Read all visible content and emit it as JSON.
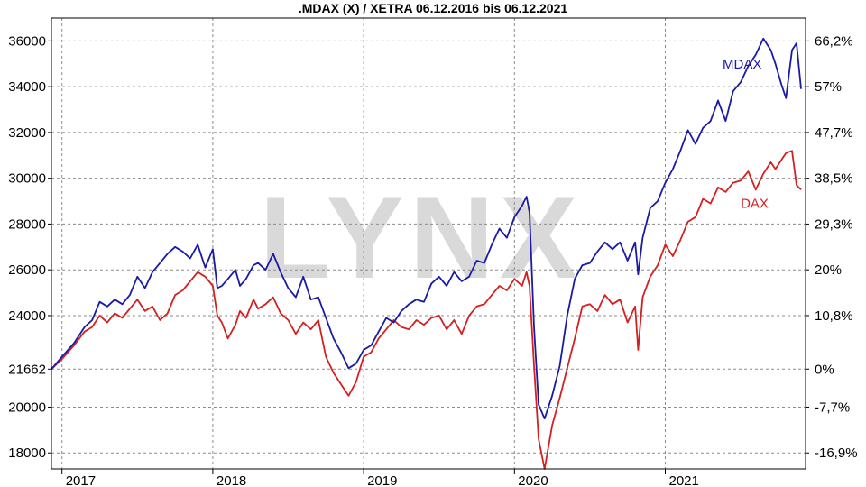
{
  "chart_data": {
    "type": "line",
    "title": ".MDAX (X) / XETRA 06.12.2016 bis 06.12.2021",
    "watermark": "LYNX",
    "ylim": [
      17300,
      37000
    ],
    "y_ticks_left": [
      18000,
      20000,
      21662,
      24000,
      26000,
      28000,
      30000,
      32000,
      34000,
      36000
    ],
    "y_ticks_right": [
      {
        "value": 18000,
        "label": "-16,9%"
      },
      {
        "value": 20000,
        "label": "-7,7%"
      },
      {
        "value": 21662,
        "label": "0%"
      },
      {
        "value": 24000,
        "label": "10,8%"
      },
      {
        "value": 26000,
        "label": "20%"
      },
      {
        "value": 28000,
        "label": "29,3%"
      },
      {
        "value": 30000,
        "label": "38,5%"
      },
      {
        "value": 32000,
        "label": "47,7%"
      },
      {
        "value": 34000,
        "label": "57%"
      },
      {
        "value": 36000,
        "label": "66,2%"
      }
    ],
    "xlim": [
      2016.93,
      2021.93
    ],
    "x_ticks": [
      {
        "value": 2017,
        "label": "2017"
      },
      {
        "value": 2018,
        "label": "2018"
      },
      {
        "value": 2019,
        "label": "2019"
      },
      {
        "value": 2020,
        "label": "2020"
      },
      {
        "value": 2021,
        "label": "2021"
      }
    ],
    "grid": true,
    "series": [
      {
        "name": "MDAX",
        "color": "#1a1aa6",
        "x": [
          2016.93,
          2017.0,
          2017.08,
          2017.15,
          2017.2,
          2017.25,
          2017.3,
          2017.35,
          2017.4,
          2017.45,
          2017.5,
          2017.55,
          2017.6,
          2017.65,
          2017.7,
          2017.75,
          2017.8,
          2017.85,
          2017.9,
          2017.95,
          2018.0,
          2018.03,
          2018.06,
          2018.1,
          2018.15,
          2018.18,
          2018.22,
          2018.27,
          2018.3,
          2018.35,
          2018.4,
          2018.45,
          2018.5,
          2018.55,
          2018.6,
          2018.65,
          2018.7,
          2018.75,
          2018.8,
          2018.85,
          2018.9,
          2018.95,
          2019.0,
          2019.05,
          2019.1,
          2019.15,
          2019.2,
          2019.25,
          2019.3,
          2019.35,
          2019.4,
          2019.45,
          2019.5,
          2019.55,
          2019.6,
          2019.65,
          2019.7,
          2019.75,
          2019.8,
          2019.85,
          2019.9,
          2019.95,
          2020.0,
          2020.05,
          2020.08,
          2020.1,
          2020.13,
          2020.16,
          2020.2,
          2020.25,
          2020.3,
          2020.35,
          2020.4,
          2020.45,
          2020.5,
          2020.55,
          2020.6,
          2020.65,
          2020.7,
          2020.75,
          2020.8,
          2020.82,
          2020.85,
          2020.9,
          2020.95,
          2021.0,
          2021.05,
          2021.1,
          2021.15,
          2021.2,
          2021.25,
          2021.3,
          2021.35,
          2021.4,
          2021.45,
          2021.5,
          2021.55,
          2021.6,
          2021.65,
          2021.7,
          2021.73,
          2021.77,
          2021.8,
          2021.84,
          2021.87,
          2021.9
        ],
        "values": [
          21662,
          22200,
          22800,
          23500,
          23800,
          24600,
          24400,
          24700,
          24500,
          24900,
          25700,
          25200,
          25900,
          26300,
          26700,
          27000,
          26800,
          26500,
          27100,
          26100,
          26900,
          25200,
          25300,
          25600,
          26000,
          25300,
          25600,
          26200,
          26300,
          26000,
          26700,
          25900,
          25200,
          24800,
          25700,
          24700,
          24800,
          23900,
          23000,
          22400,
          21700,
          21900,
          22500,
          22700,
          23300,
          23900,
          23700,
          24200,
          24500,
          24700,
          24600,
          25400,
          25700,
          25300,
          25900,
          25500,
          25700,
          26400,
          26300,
          27100,
          27800,
          27400,
          28300,
          28800,
          29200,
          28500,
          23500,
          20100,
          19500,
          20500,
          21800,
          24000,
          25600,
          26200,
          26300,
          26800,
          27200,
          26900,
          27200,
          26400,
          27200,
          25800,
          27400,
          28700,
          29000,
          29800,
          30400,
          31200,
          32100,
          31500,
          32200,
          32500,
          33400,
          32500,
          33800,
          34200,
          34900,
          35400,
          36100,
          35600,
          35000,
          34100,
          33500,
          35600,
          35900,
          33900
        ]
      },
      {
        "name": "DAX",
        "color": "#d42020",
        "x": [
          2016.93,
          2017.0,
          2017.08,
          2017.15,
          2017.2,
          2017.25,
          2017.3,
          2017.35,
          2017.4,
          2017.45,
          2017.5,
          2017.55,
          2017.6,
          2017.65,
          2017.7,
          2017.75,
          2017.8,
          2017.85,
          2017.9,
          2017.95,
          2018.0,
          2018.03,
          2018.06,
          2018.1,
          2018.15,
          2018.18,
          2018.22,
          2018.27,
          2018.3,
          2018.35,
          2018.4,
          2018.45,
          2018.5,
          2018.55,
          2018.6,
          2018.65,
          2018.7,
          2018.75,
          2018.8,
          2018.85,
          2018.9,
          2018.95,
          2019.0,
          2019.05,
          2019.1,
          2019.15,
          2019.2,
          2019.25,
          2019.3,
          2019.35,
          2019.4,
          2019.45,
          2019.5,
          2019.55,
          2019.6,
          2019.65,
          2019.7,
          2019.75,
          2019.8,
          2019.85,
          2019.9,
          2019.95,
          2020.0,
          2020.05,
          2020.08,
          2020.1,
          2020.13,
          2020.16,
          2020.2,
          2020.25,
          2020.3,
          2020.35,
          2020.4,
          2020.45,
          2020.5,
          2020.55,
          2020.6,
          2020.65,
          2020.7,
          2020.75,
          2020.8,
          2020.82,
          2020.85,
          2020.9,
          2020.95,
          2021.0,
          2021.05,
          2021.1,
          2021.15,
          2021.2,
          2021.25,
          2021.3,
          2021.35,
          2021.4,
          2021.45,
          2021.5,
          2021.55,
          2021.6,
          2021.65,
          2021.7,
          2021.73,
          2021.77,
          2021.8,
          2021.84,
          2021.87,
          2021.9
        ],
        "values": [
          21662,
          22100,
          22700,
          23300,
          23500,
          24000,
          23700,
          24100,
          23900,
          24300,
          24700,
          24200,
          24400,
          23800,
          24100,
          24900,
          25100,
          25500,
          25900,
          25700,
          25300,
          24000,
          23700,
          23000,
          23600,
          24200,
          23900,
          24700,
          24300,
          24500,
          24800,
          24100,
          23800,
          23200,
          23700,
          23400,
          23800,
          22200,
          21500,
          21000,
          20500,
          21100,
          22200,
          22400,
          23000,
          23400,
          23800,
          23500,
          23400,
          23800,
          23600,
          23900,
          24000,
          23400,
          23800,
          23200,
          24000,
          24400,
          24500,
          24900,
          25300,
          25100,
          25600,
          25300,
          25900,
          25300,
          21800,
          18600,
          17300,
          19200,
          20400,
          21700,
          23000,
          24400,
          24500,
          24200,
          24900,
          24500,
          24700,
          23700,
          24400,
          22500,
          24800,
          25700,
          26200,
          27100,
          26600,
          27300,
          28100,
          28300,
          29100,
          28900,
          29600,
          29400,
          29800,
          29900,
          30300,
          29500,
          30200,
          30700,
          30400,
          30800,
          31100,
          31200,
          29700,
          29500
        ]
      }
    ],
    "annotations": [
      {
        "series": "MDAX",
        "text": "MDAX",
        "x": 2021.38,
        "y": 34800
      },
      {
        "series": "DAX",
        "text": "DAX",
        "x": 2021.5,
        "y": 28700
      }
    ]
  }
}
